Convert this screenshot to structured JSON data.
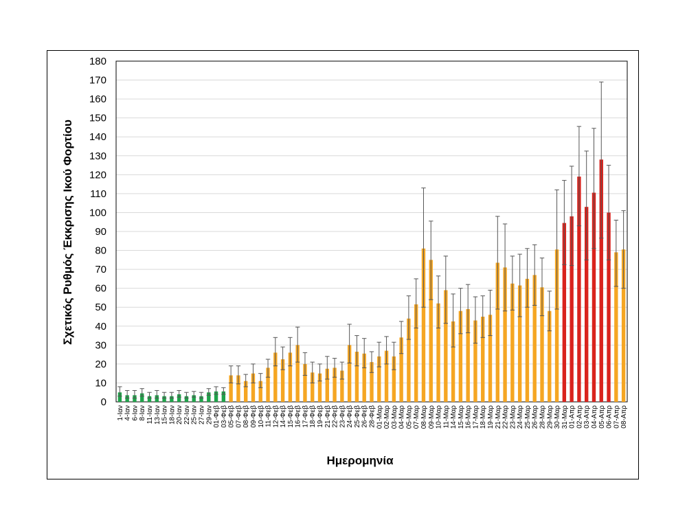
{
  "chart_data": {
    "type": "bar",
    "title": "",
    "xlabel": "Ημερομηνία",
    "ylabel": "Σχετικός Ρυθμός Έκκρισης Ικού Φορτίου",
    "ylim": [
      0,
      180
    ],
    "yticks": [
      0,
      10,
      20,
      30,
      40,
      50,
      60,
      70,
      80,
      90,
      100,
      110,
      120,
      130,
      140,
      150,
      160,
      170,
      180
    ],
    "grid": true,
    "legend": "none",
    "categories": [
      "1-Ιαν",
      "4-Ιαν",
      "6-Ιαν",
      "8-Ιαν",
      "11-Ιαν",
      "13-Ιαν",
      "15-Ιαν",
      "18-Ιαν",
      "20-Ιαν",
      "22-Ιαν",
      "25-Ιαν",
      "27-Ιαν",
      "29-Ιαν",
      "01-Φεβ",
      "03-Φεβ",
      "05-Φεβ",
      "07-Φεβ",
      "08-Φεβ",
      "09-Φεβ",
      "10-Φεβ",
      "11-Φεβ",
      "12-Φεβ",
      "14-Φεβ",
      "15-Φεβ",
      "16-Φεβ",
      "17-Φεβ",
      "18-Φεβ",
      "19-Φεβ",
      "21-Φεβ",
      "22-Φεβ",
      "23-Φεβ",
      "24-Φεβ",
      "25-Φεβ",
      "26-Φεβ",
      "28-Φεβ",
      "01-Μαρ",
      "02-Μαρ",
      "03-Μαρ",
      "04-Μαρ",
      "05-Μαρ",
      "07-Μαρ",
      "08-Μαρ",
      "09-Μαρ",
      "10-Μαρ",
      "11-Μαρ",
      "14-Μαρ",
      "15-Μαρ",
      "16-Μαρ",
      "17-Μαρ",
      "18-Μαρ",
      "19-Μαρ",
      "21-Μαρ",
      "22-Μαρ",
      "23-Μαρ",
      "24-Μαρ",
      "25-Μαρ",
      "26-Μαρ",
      "28-Μαρ",
      "29-Μαρ",
      "30-Μαρ",
      "31-Μαρ",
      "01-Απρ",
      "02-Απρ",
      "03-Απρ",
      "04-Απρ",
      "05-Απρ",
      "06-Απρ",
      "07-Απρ",
      "08-Απρ"
    ],
    "values": [
      5,
      3.5,
      3.5,
      4.5,
      3,
      3.5,
      3,
      3,
      4,
      3,
      3.5,
      3,
      5,
      5.5,
      5.5,
      14,
      14,
      11,
      15,
      11,
      18,
      26,
      22.5,
      26,
      30,
      20,
      15.5,
      15,
      17.5,
      18,
      16.5,
      30,
      26.5,
      25.5,
      21,
      24,
      27,
      24,
      34,
      44,
      51.5,
      81,
      75,
      52,
      59,
      42.5,
      48,
      49,
      43,
      45,
      46,
      73.5,
      71,
      62.5,
      61.5,
      65,
      67,
      60.5,
      48,
      80.5,
      94.5,
      98,
      119,
      103,
      110.5,
      128,
      100,
      79,
      80.5
    ],
    "error_upper": [
      8,
      6,
      6,
      7,
      5,
      6,
      5,
      5,
      6,
      5,
      5.5,
      5,
      7,
      8,
      7.5,
      19,
      19,
      14.5,
      20,
      15,
      22.5,
      34,
      29,
      34,
      39.5,
      26,
      21,
      20,
      24,
      23,
      21,
      41,
      35,
      33.5,
      26.5,
      31.5,
      34.5,
      31.5,
      42.5,
      56,
      65,
      113,
      95.5,
      66.5,
      77,
      57,
      60,
      62,
      55.5,
      56,
      59,
      98,
      94,
      77,
      78,
      81,
      83,
      76,
      58.5,
      112,
      117,
      124.5,
      145.5,
      132.5,
      144.5,
      169,
      125,
      96,
      101
    ],
    "error_lower": [
      3,
      2,
      2,
      3,
      2,
      2,
      2,
      2,
      2.5,
      2,
      2.5,
      2,
      3.5,
      4,
      4,
      10,
      9.5,
      8,
      10,
      7.5,
      13,
      19,
      17,
      19,
      21,
      14,
      10,
      11,
      12,
      13,
      12,
      20.5,
      19,
      18,
      15.5,
      18.5,
      20,
      17,
      25.5,
      33,
      39,
      50,
      54,
      39,
      41.5,
      29,
      36,
      36.5,
      31,
      34,
      35,
      49,
      48,
      48.5,
      45,
      50,
      51,
      45.5,
      37.5,
      49,
      72.5,
      72,
      93,
      75,
      81,
      86.5,
      75,
      61,
      60
    ],
    "bar_colors": [
      "#1fa34a",
      "#1fa34a",
      "#1fa34a",
      "#1fa34a",
      "#1fa34a",
      "#1fa34a",
      "#1fa34a",
      "#1fa34a",
      "#1fa34a",
      "#1fa34a",
      "#1fa34a",
      "#1fa34a",
      "#1fa34a",
      "#1fa34a",
      "#1fa34a",
      "#f5a623",
      "#f5a623",
      "#f5a623",
      "#f5a623",
      "#f5a623",
      "#f5a623",
      "#f5a623",
      "#f5a623",
      "#f5a623",
      "#f5a623",
      "#f5a623",
      "#f5a623",
      "#f5a623",
      "#f5a623",
      "#f5a623",
      "#f5a623",
      "#f5a623",
      "#f5a623",
      "#f5a623",
      "#f5a623",
      "#f5a623",
      "#f5a623",
      "#f5a623",
      "#f5a623",
      "#f5a623",
      "#f5a623",
      "#f5a623",
      "#f5a623",
      "#f5a623",
      "#f5a623",
      "#f5a623",
      "#f5a623",
      "#f5a623",
      "#f5a623",
      "#f5a623",
      "#f5a623",
      "#f5a623",
      "#f5a623",
      "#f5a623",
      "#f5a623",
      "#f5a623",
      "#f5a623",
      "#f5a623",
      "#f5a623",
      "#f5a623",
      "#d9231d",
      "#d9231d",
      "#d9231d",
      "#d9231d",
      "#d9231d",
      "#d9231d",
      "#d9231d",
      "#f5a623",
      "#f5a623"
    ]
  }
}
